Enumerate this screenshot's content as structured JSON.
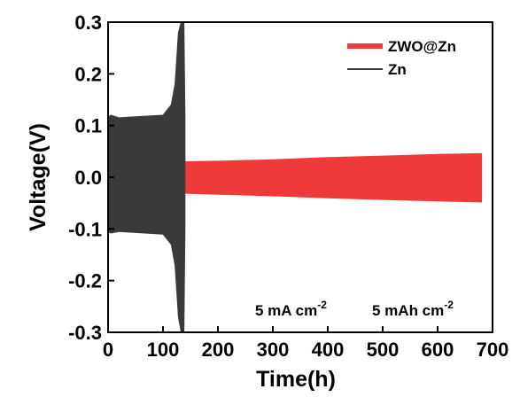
{
  "chart_data": {
    "type": "line",
    "title": "",
    "xlabel": "Time(h)",
    "ylabel": "Voltage(V)",
    "xlim": [
      0,
      700
    ],
    "ylim": [
      -0.3,
      0.3
    ],
    "x_ticks": [
      0,
      100,
      200,
      300,
      400,
      500,
      600,
      700
    ],
    "y_ticks": [
      0.3,
      0.2,
      0.1,
      0.0,
      -0.1,
      -0.2,
      -0.3
    ],
    "y_tick_labels": [
      "0.3",
      "0.2",
      "0.1",
      "0.0",
      "-0.1",
      "-0.2",
      "-0.3"
    ],
    "grid": false,
    "legend_position": "top-right",
    "series": [
      {
        "name": "ZWO@Zn",
        "color": "#f03a3a",
        "style": "voltage-hysteresis-band",
        "x": [
          140,
          200,
          300,
          400,
          500,
          600,
          680
        ],
        "upper": [
          0.03,
          0.031,
          0.034,
          0.038,
          0.041,
          0.044,
          0.046
        ],
        "lower": [
          -0.031,
          -0.033,
          -0.036,
          -0.04,
          -0.043,
          -0.046,
          -0.048
        ]
      },
      {
        "name": "Zn",
        "color": "#3a3a3a",
        "style": "voltage-hysteresis-band",
        "x": [
          0,
          5,
          20,
          50,
          100,
          115,
          122,
          128,
          133,
          138,
          140
        ],
        "upper": [
          0.115,
          0.12,
          0.115,
          0.117,
          0.12,
          0.14,
          0.18,
          0.28,
          0.3,
          0.3,
          0.12
        ],
        "lower": [
          -0.105,
          -0.108,
          -0.105,
          -0.107,
          -0.11,
          -0.13,
          -0.17,
          -0.27,
          -0.3,
          -0.3,
          -0.1
        ]
      }
    ],
    "annotations": [
      {
        "base": "5 mA cm",
        "sup": "-2"
      },
      {
        "base": "5 mAh cm",
        "sup": "-2"
      }
    ]
  }
}
